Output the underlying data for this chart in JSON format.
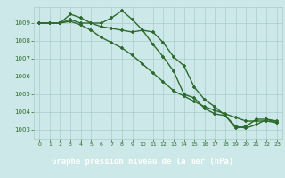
{
  "title": "Graphe pression niveau de la mer (hPa)",
  "hours": [
    0,
    1,
    2,
    3,
    4,
    5,
    6,
    7,
    8,
    9,
    10,
    11,
    12,
    13,
    14,
    15,
    16,
    17,
    18,
    19,
    20,
    21,
    22,
    23
  ],
  "line1": [
    1009.0,
    1009.0,
    1009.0,
    1009.5,
    1009.3,
    1009.0,
    1009.0,
    1009.3,
    1009.7,
    1009.2,
    1008.6,
    1007.8,
    1007.1,
    1006.3,
    1005.0,
    1004.8,
    1004.2,
    1003.9,
    1003.8,
    1003.1,
    1003.2,
    1003.6,
    1003.6,
    1003.4
  ],
  "line2": [
    1009.0,
    1009.0,
    1009.0,
    1009.1,
    1008.9,
    1008.6,
    1008.2,
    1007.9,
    1007.6,
    1007.2,
    1006.7,
    1006.2,
    1005.7,
    1005.2,
    1004.9,
    1004.6,
    1004.3,
    1004.1,
    1003.9,
    1003.7,
    1003.5,
    1003.5,
    1003.5,
    1003.4
  ],
  "line3": [
    1009.0,
    1009.0,
    1009.0,
    1009.2,
    1009.0,
    1009.0,
    1008.8,
    1008.7,
    1008.6,
    1008.5,
    1008.6,
    1008.5,
    1007.9,
    1007.1,
    1006.6,
    1005.4,
    1004.7,
    1004.3,
    1003.8,
    1003.2,
    1003.1,
    1003.3,
    1003.6,
    1003.5
  ],
  "line_color": "#2d6a2d",
  "bg_color": "#cce8e8",
  "grid_color": "#aacccc",
  "tick_label_color": "#2d6a2d",
  "title_bg": "#3a7a3a",
  "title_text_color": "#ffffff",
  "ylim": [
    1002.5,
    1009.9
  ],
  "yticks": [
    1003,
    1004,
    1005,
    1006,
    1007,
    1008,
    1009
  ],
  "marker_size": 3.5,
  "line_width": 1.0
}
